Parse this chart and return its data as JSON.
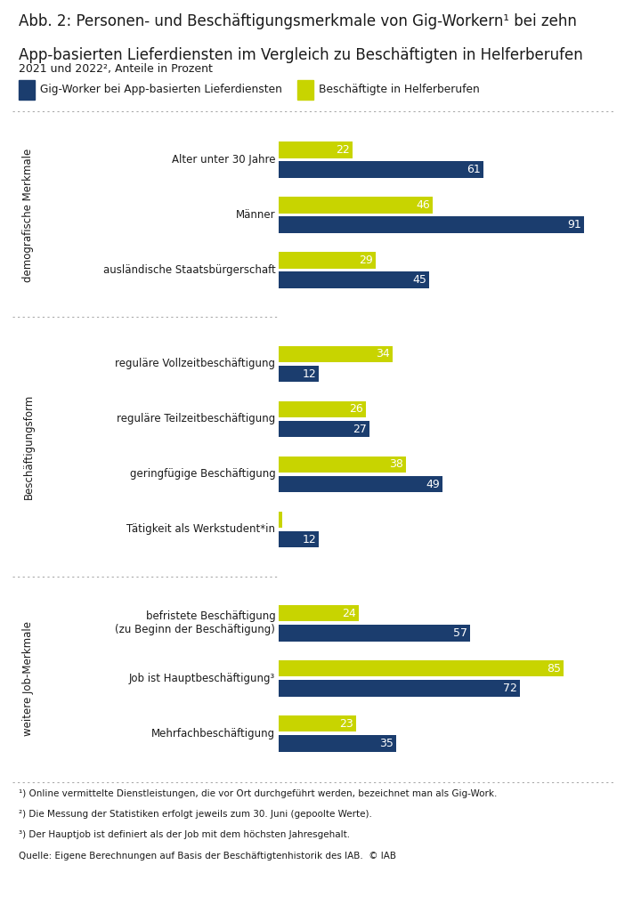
{
  "title_line1": "Abb. 2: Personen- und Beschäftigungsmerkmale von Gig-Workern¹ bei zehn",
  "title_line2": "App-basierten Lieferdiensten im Vergleich zu Beschäftigten in Helferberufen",
  "subtitle": "2021 und 2022², Anteile in Prozent",
  "legend_gig": "Gig-Worker bei App-basierten Lieferdiensten",
  "legend_helfer": "Beschäftigte in Helferberufen",
  "color_gig": "#1b3d6e",
  "color_helfer": "#c8d400",
  "color_bg": "#ffffff",
  "color_text": "#1a1a1a",
  "sections": [
    {
      "label": "demografische Merkmale",
      "items": [
        {
          "category": "Alter unter 30 Jahre",
          "gig": 61,
          "helfer": 22
        },
        {
          "category": "Männer",
          "gig": 91,
          "helfer": 46
        },
        {
          "category": "ausländische Staatsbürgerschaft",
          "gig": 45,
          "helfer": 29
        }
      ]
    },
    {
      "label": "Beschäftigungsform",
      "items": [
        {
          "category": "reguläre Vollzeitbeschäftigung",
          "gig": 12,
          "helfer": 34
        },
        {
          "category": "reguläre Teilzeitbeschäftigung",
          "gig": 27,
          "helfer": 26
        },
        {
          "category": "geringfügige Beschäftigung",
          "gig": 49,
          "helfer": 38
        },
        {
          "category": "Tätigkeit als Werkstudent*in",
          "gig": 12,
          "helfer": 1
        }
      ]
    },
    {
      "label": "weitere Job-Merkmale",
      "items": [
        {
          "category": "befristete Beschäftigung\n(zu Beginn der Beschäftigung)",
          "gig": 57,
          "helfer": 24
        },
        {
          "category": "Job ist Hauptbeschäftigung³",
          "gig": 72,
          "helfer": 85
        },
        {
          "category": "Mehrfachbeschäftigung",
          "gig": 35,
          "helfer": 23
        }
      ]
    }
  ],
  "footnotes": [
    "¹) Online vermittelte Dienstleistungen, die vor Ort durchgeführt werden, bezeichnet man als Gig-Work.",
    "²) Die Messung der Statistiken erfolgt jeweils zum 30. Juni (gepoolte Werte).",
    "³) Der Hauptjob ist definiert als der Job mit dem höchsten Jahresgehalt.",
    "Quelle: Eigene Berechnungen auf Basis der Beschäftigtenhistorik des IAB.  © IAB"
  ]
}
